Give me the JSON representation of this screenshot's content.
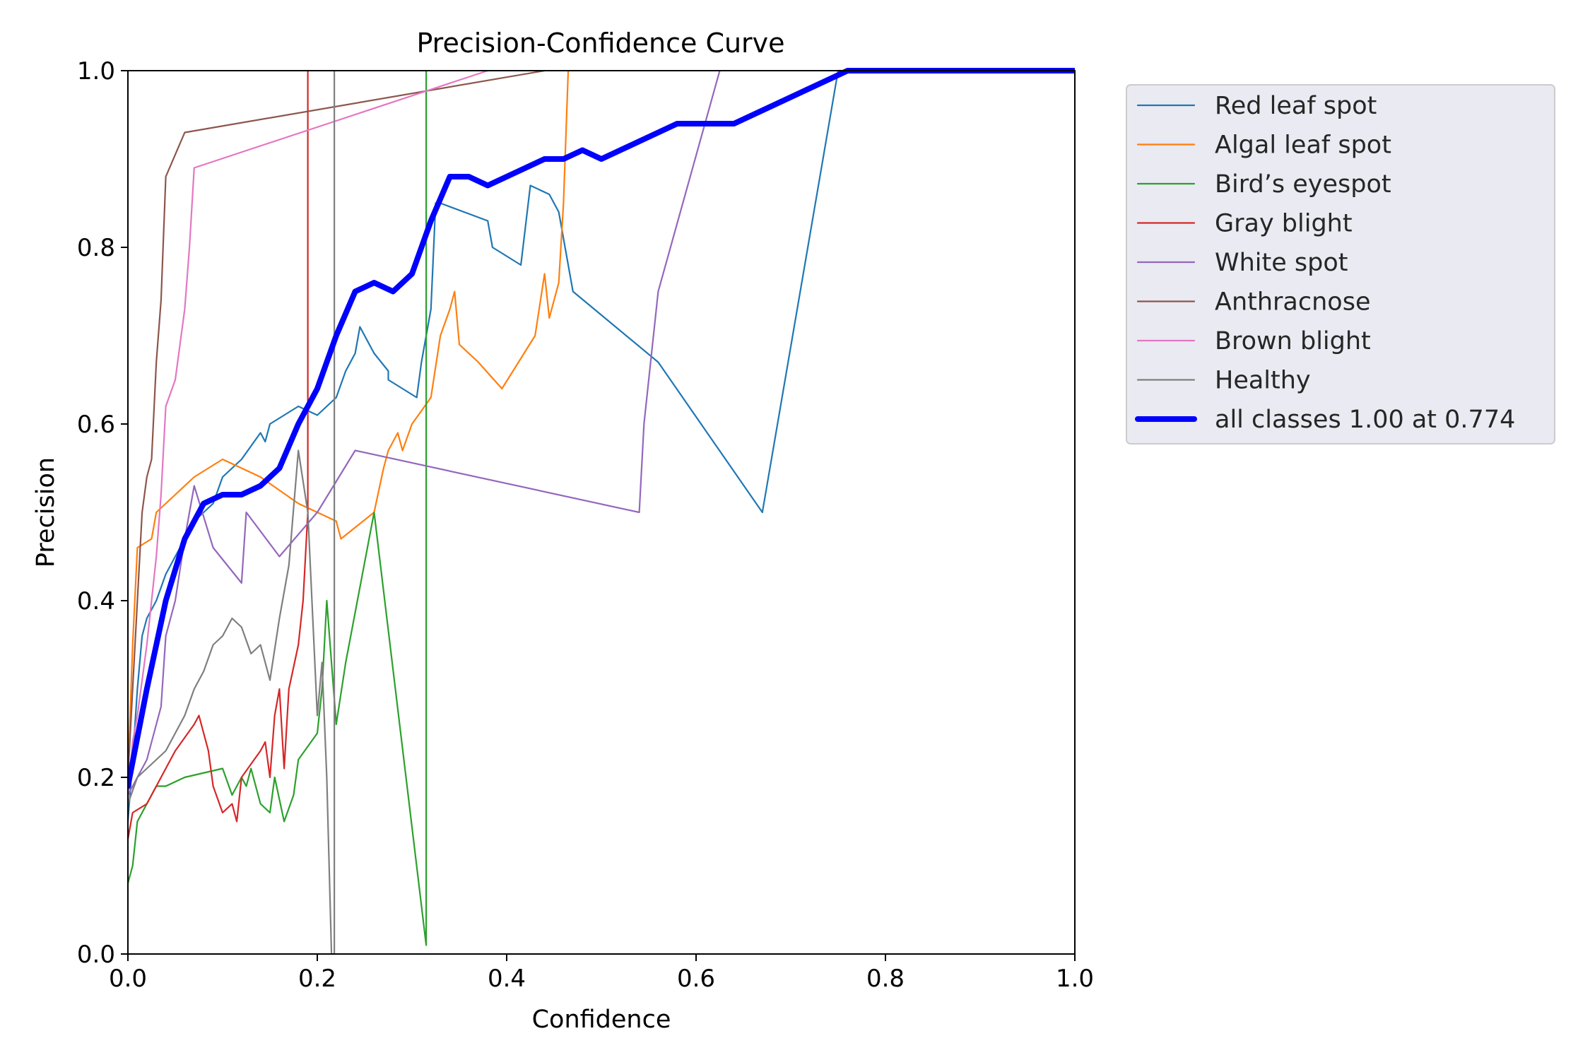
{
  "chart_data": {
    "type": "line",
    "title": "Precision-Confidence Curve",
    "xlabel": "Confidence",
    "ylabel": "Precision",
    "xlim": [
      0,
      1
    ],
    "ylim": [
      0,
      1
    ],
    "x_ticks": [
      "0.0",
      "0.2",
      "0.4",
      "0.6",
      "0.8",
      "1.0"
    ],
    "y_ticks": [
      "0.0",
      "0.2",
      "0.4",
      "0.6",
      "0.8",
      "1.0"
    ],
    "grid": false,
    "legend_position": "outside-right-top",
    "series": [
      {
        "name": "Red leaf spot",
        "color": "#1f77b4",
        "points": [
          [
            0,
            0.15
          ],
          [
            0.005,
            0.22
          ],
          [
            0.01,
            0.3
          ],
          [
            0.015,
            0.36
          ],
          [
            0.02,
            0.38
          ],
          [
            0.03,
            0.4
          ],
          [
            0.04,
            0.43
          ],
          [
            0.05,
            0.45
          ],
          [
            0.06,
            0.47
          ],
          [
            0.07,
            0.49
          ],
          [
            0.08,
            0.5
          ],
          [
            0.09,
            0.51
          ],
          [
            0.1,
            0.54
          ],
          [
            0.12,
            0.56
          ],
          [
            0.14,
            0.59
          ],
          [
            0.145,
            0.58
          ],
          [
            0.15,
            0.6
          ],
          [
            0.18,
            0.62
          ],
          [
            0.2,
            0.61
          ],
          [
            0.22,
            0.63
          ],
          [
            0.23,
            0.66
          ],
          [
            0.24,
            0.68
          ],
          [
            0.245,
            0.71
          ],
          [
            0.26,
            0.68
          ],
          [
            0.275,
            0.66
          ],
          [
            0.275,
            0.65
          ],
          [
            0.305,
            0.63
          ],
          [
            0.31,
            0.67
          ],
          [
            0.32,
            0.73
          ],
          [
            0.325,
            0.85
          ],
          [
            0.33,
            0.85
          ],
          [
            0.38,
            0.83
          ],
          [
            0.385,
            0.8
          ],
          [
            0.415,
            0.78
          ],
          [
            0.425,
            0.87
          ],
          [
            0.445,
            0.86
          ],
          [
            0.455,
            0.84
          ],
          [
            0.47,
            0.75
          ],
          [
            0.56,
            0.67
          ],
          [
            0.67,
            0.5
          ],
          [
            0.75,
            1.0
          ],
          [
            1.0,
            1.0
          ]
        ]
      },
      {
        "name": "Algal leaf spot",
        "color": "#ff7f0e",
        "points": [
          [
            0,
            0.2
          ],
          [
            0.005,
            0.35
          ],
          [
            0.01,
            0.46
          ],
          [
            0.025,
            0.47
          ],
          [
            0.03,
            0.5
          ],
          [
            0.04,
            0.51
          ],
          [
            0.05,
            0.52
          ],
          [
            0.07,
            0.54
          ],
          [
            0.1,
            0.56
          ],
          [
            0.14,
            0.54
          ],
          [
            0.18,
            0.51
          ],
          [
            0.2,
            0.5
          ],
          [
            0.22,
            0.49
          ],
          [
            0.225,
            0.47
          ],
          [
            0.26,
            0.5
          ],
          [
            0.27,
            0.55
          ],
          [
            0.275,
            0.57
          ],
          [
            0.28,
            0.58
          ],
          [
            0.285,
            0.59
          ],
          [
            0.29,
            0.57
          ],
          [
            0.3,
            0.6
          ],
          [
            0.32,
            0.63
          ],
          [
            0.33,
            0.7
          ],
          [
            0.34,
            0.73
          ],
          [
            0.345,
            0.75
          ],
          [
            0.35,
            0.69
          ],
          [
            0.37,
            0.67
          ],
          [
            0.395,
            0.64
          ],
          [
            0.43,
            0.7
          ],
          [
            0.44,
            0.77
          ],
          [
            0.445,
            0.72
          ],
          [
            0.455,
            0.76
          ],
          [
            0.46,
            0.85
          ],
          [
            0.465,
            1.0
          ]
        ]
      },
      {
        "name": "Bird’s eyespot",
        "color": "#2ca02c",
        "points": [
          [
            0,
            0.08
          ],
          [
            0.005,
            0.1
          ],
          [
            0.01,
            0.15
          ],
          [
            0.02,
            0.17
          ],
          [
            0.03,
            0.19
          ],
          [
            0.04,
            0.19
          ],
          [
            0.06,
            0.2
          ],
          [
            0.1,
            0.21
          ],
          [
            0.11,
            0.18
          ],
          [
            0.12,
            0.2
          ],
          [
            0.125,
            0.19
          ],
          [
            0.13,
            0.21
          ],
          [
            0.14,
            0.17
          ],
          [
            0.15,
            0.16
          ],
          [
            0.155,
            0.2
          ],
          [
            0.165,
            0.15
          ],
          [
            0.175,
            0.18
          ],
          [
            0.18,
            0.22
          ],
          [
            0.2,
            0.25
          ],
          [
            0.205,
            0.3
          ],
          [
            0.21,
            0.4
          ],
          [
            0.22,
            0.26
          ],
          [
            0.23,
            0.33
          ],
          [
            0.26,
            0.5
          ],
          [
            0.315,
            0.01
          ],
          [
            0.315,
            1.0
          ]
        ]
      },
      {
        "name": "Gray blight",
        "color": "#d62728",
        "points": [
          [
            0,
            0.13
          ],
          [
            0.005,
            0.16
          ],
          [
            0.02,
            0.17
          ],
          [
            0.03,
            0.19
          ],
          [
            0.05,
            0.23
          ],
          [
            0.07,
            0.26
          ],
          [
            0.075,
            0.27
          ],
          [
            0.085,
            0.23
          ],
          [
            0.09,
            0.19
          ],
          [
            0.1,
            0.16
          ],
          [
            0.11,
            0.17
          ],
          [
            0.115,
            0.15
          ],
          [
            0.12,
            0.2
          ],
          [
            0.14,
            0.23
          ],
          [
            0.145,
            0.24
          ],
          [
            0.15,
            0.2
          ],
          [
            0.155,
            0.27
          ],
          [
            0.16,
            0.3
          ],
          [
            0.165,
            0.21
          ],
          [
            0.17,
            0.3
          ],
          [
            0.18,
            0.35
          ],
          [
            0.185,
            0.4
          ],
          [
            0.19,
            0.5
          ],
          [
            0.19,
            1.0
          ]
        ]
      },
      {
        "name": "White spot",
        "color": "#9467bd",
        "points": [
          [
            0,
            0.18
          ],
          [
            0.01,
            0.2
          ],
          [
            0.02,
            0.22
          ],
          [
            0.03,
            0.26
          ],
          [
            0.035,
            0.28
          ],
          [
            0.04,
            0.36
          ],
          [
            0.05,
            0.4
          ],
          [
            0.06,
            0.47
          ],
          [
            0.07,
            0.53
          ],
          [
            0.09,
            0.46
          ],
          [
            0.12,
            0.42
          ],
          [
            0.125,
            0.5
          ],
          [
            0.16,
            0.45
          ],
          [
            0.2,
            0.5
          ],
          [
            0.24,
            0.57
          ],
          [
            0.54,
            0.5
          ],
          [
            0.545,
            0.6
          ],
          [
            0.56,
            0.75
          ],
          [
            0.625,
            1.0
          ]
        ]
      },
      {
        "name": "Anthracnose",
        "color": "#8c564b",
        "points": [
          [
            0,
            0.2
          ],
          [
            0.005,
            0.3
          ],
          [
            0.01,
            0.4
          ],
          [
            0.015,
            0.5
          ],
          [
            0.02,
            0.54
          ],
          [
            0.025,
            0.56
          ],
          [
            0.03,
            0.67
          ],
          [
            0.035,
            0.74
          ],
          [
            0.04,
            0.88
          ],
          [
            0.06,
            0.93
          ],
          [
            0.44,
            1.0
          ]
        ]
      },
      {
        "name": "Brown blight",
        "color": "#e377c2",
        "points": [
          [
            0,
            0.18
          ],
          [
            0.005,
            0.24
          ],
          [
            0.01,
            0.27
          ],
          [
            0.02,
            0.35
          ],
          [
            0.03,
            0.45
          ],
          [
            0.035,
            0.52
          ],
          [
            0.04,
            0.62
          ],
          [
            0.05,
            0.65
          ],
          [
            0.06,
            0.73
          ],
          [
            0.065,
            0.8
          ],
          [
            0.07,
            0.89
          ],
          [
            0.38,
            1.0
          ]
        ]
      },
      {
        "name": "Healthy",
        "color": "#7f7f7f",
        "points": [
          [
            0,
            0.17
          ],
          [
            0.01,
            0.2
          ],
          [
            0.02,
            0.21
          ],
          [
            0.03,
            0.22
          ],
          [
            0.04,
            0.23
          ],
          [
            0.05,
            0.25
          ],
          [
            0.06,
            0.27
          ],
          [
            0.07,
            0.3
          ],
          [
            0.08,
            0.32
          ],
          [
            0.09,
            0.35
          ],
          [
            0.1,
            0.36
          ],
          [
            0.11,
            0.38
          ],
          [
            0.12,
            0.37
          ],
          [
            0.13,
            0.34
          ],
          [
            0.14,
            0.35
          ],
          [
            0.15,
            0.31
          ],
          [
            0.16,
            0.38
          ],
          [
            0.17,
            0.44
          ],
          [
            0.18,
            0.57
          ],
          [
            0.19,
            0.5
          ],
          [
            0.2,
            0.27
          ],
          [
            0.205,
            0.33
          ],
          [
            0.21,
            0.2
          ],
          [
            0.215,
            0.0
          ],
          [
            0.218,
            0.0
          ],
          [
            0.218,
            1.0
          ]
        ]
      },
      {
        "name": "all classes 1.00 at 0.774",
        "color": "#0000ff",
        "bold": true,
        "points": [
          [
            0,
            0.19
          ],
          [
            0.02,
            0.3
          ],
          [
            0.04,
            0.4
          ],
          [
            0.06,
            0.47
          ],
          [
            0.08,
            0.51
          ],
          [
            0.1,
            0.52
          ],
          [
            0.12,
            0.52
          ],
          [
            0.14,
            0.53
          ],
          [
            0.16,
            0.55
          ],
          [
            0.18,
            0.6
          ],
          [
            0.2,
            0.64
          ],
          [
            0.22,
            0.7
          ],
          [
            0.24,
            0.75
          ],
          [
            0.26,
            0.76
          ],
          [
            0.28,
            0.75
          ],
          [
            0.3,
            0.77
          ],
          [
            0.32,
            0.83
          ],
          [
            0.34,
            0.88
          ],
          [
            0.36,
            0.88
          ],
          [
            0.38,
            0.87
          ],
          [
            0.4,
            0.88
          ],
          [
            0.42,
            0.89
          ],
          [
            0.44,
            0.9
          ],
          [
            0.46,
            0.9
          ],
          [
            0.48,
            0.91
          ],
          [
            0.5,
            0.9
          ],
          [
            0.52,
            0.91
          ],
          [
            0.54,
            0.92
          ],
          [
            0.56,
            0.93
          ],
          [
            0.58,
            0.94
          ],
          [
            0.6,
            0.94
          ],
          [
            0.62,
            0.94
          ],
          [
            0.64,
            0.94
          ],
          [
            0.66,
            0.95
          ],
          [
            0.68,
            0.96
          ],
          [
            0.7,
            0.97
          ],
          [
            0.72,
            0.98
          ],
          [
            0.74,
            0.99
          ],
          [
            0.76,
            1.0
          ],
          [
            0.774,
            1.0
          ],
          [
            1.0,
            1.0
          ]
        ]
      }
    ]
  }
}
